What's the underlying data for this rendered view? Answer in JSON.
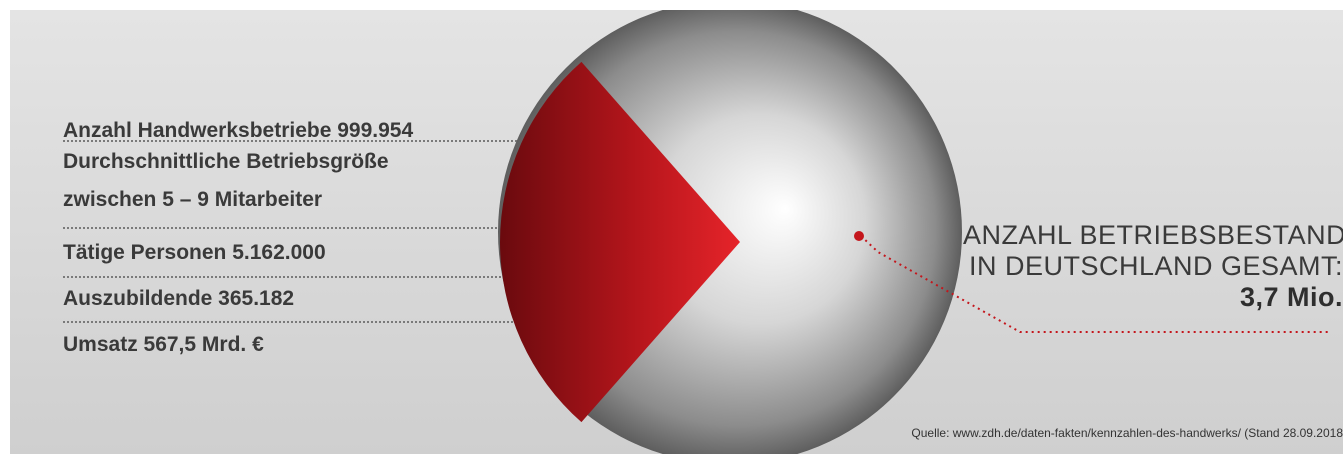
{
  "stats": [
    {
      "label": "Anzahl Handwerksbetriebe 999.954"
    },
    {
      "label_line1": "Durchschnittliche Betriebsgröße",
      "label_line2": "zwischen 5 – 9 Mitarbeiter"
    },
    {
      "label": "Tätige Personen 5.162.000"
    },
    {
      "label": "Auszubildende 365.182"
    },
    {
      "label": "Umsatz 567,5 Mrd. €"
    }
  ],
  "callout": {
    "line1": "ANZAHL BETRIEBSBESTAND",
    "line2": "IN DEUTSCHLAND GESAMT:",
    "value": "3,7 Mio."
  },
  "source": "Quelle: www.zdh.de/daten-fakten/kennzahlen-des-handwerks/ (Stand 28.09.2018",
  "chart_data": {
    "type": "pie",
    "title": "",
    "slices": [
      {
        "label": "Anzahl Handwerksbetriebe",
        "value": 999954,
        "color": "#c4161c"
      },
      {
        "label": "Anzahl Betriebsbestand",
        "value": 2700046,
        "color": "#b8b8b8"
      }
    ],
    "total_label": "3,7 Mio.",
    "legend": "none"
  },
  "colors": {
    "accent_red": "#c4161c",
    "text": "#3a3a3a",
    "panel": "#d9d9d9"
  }
}
